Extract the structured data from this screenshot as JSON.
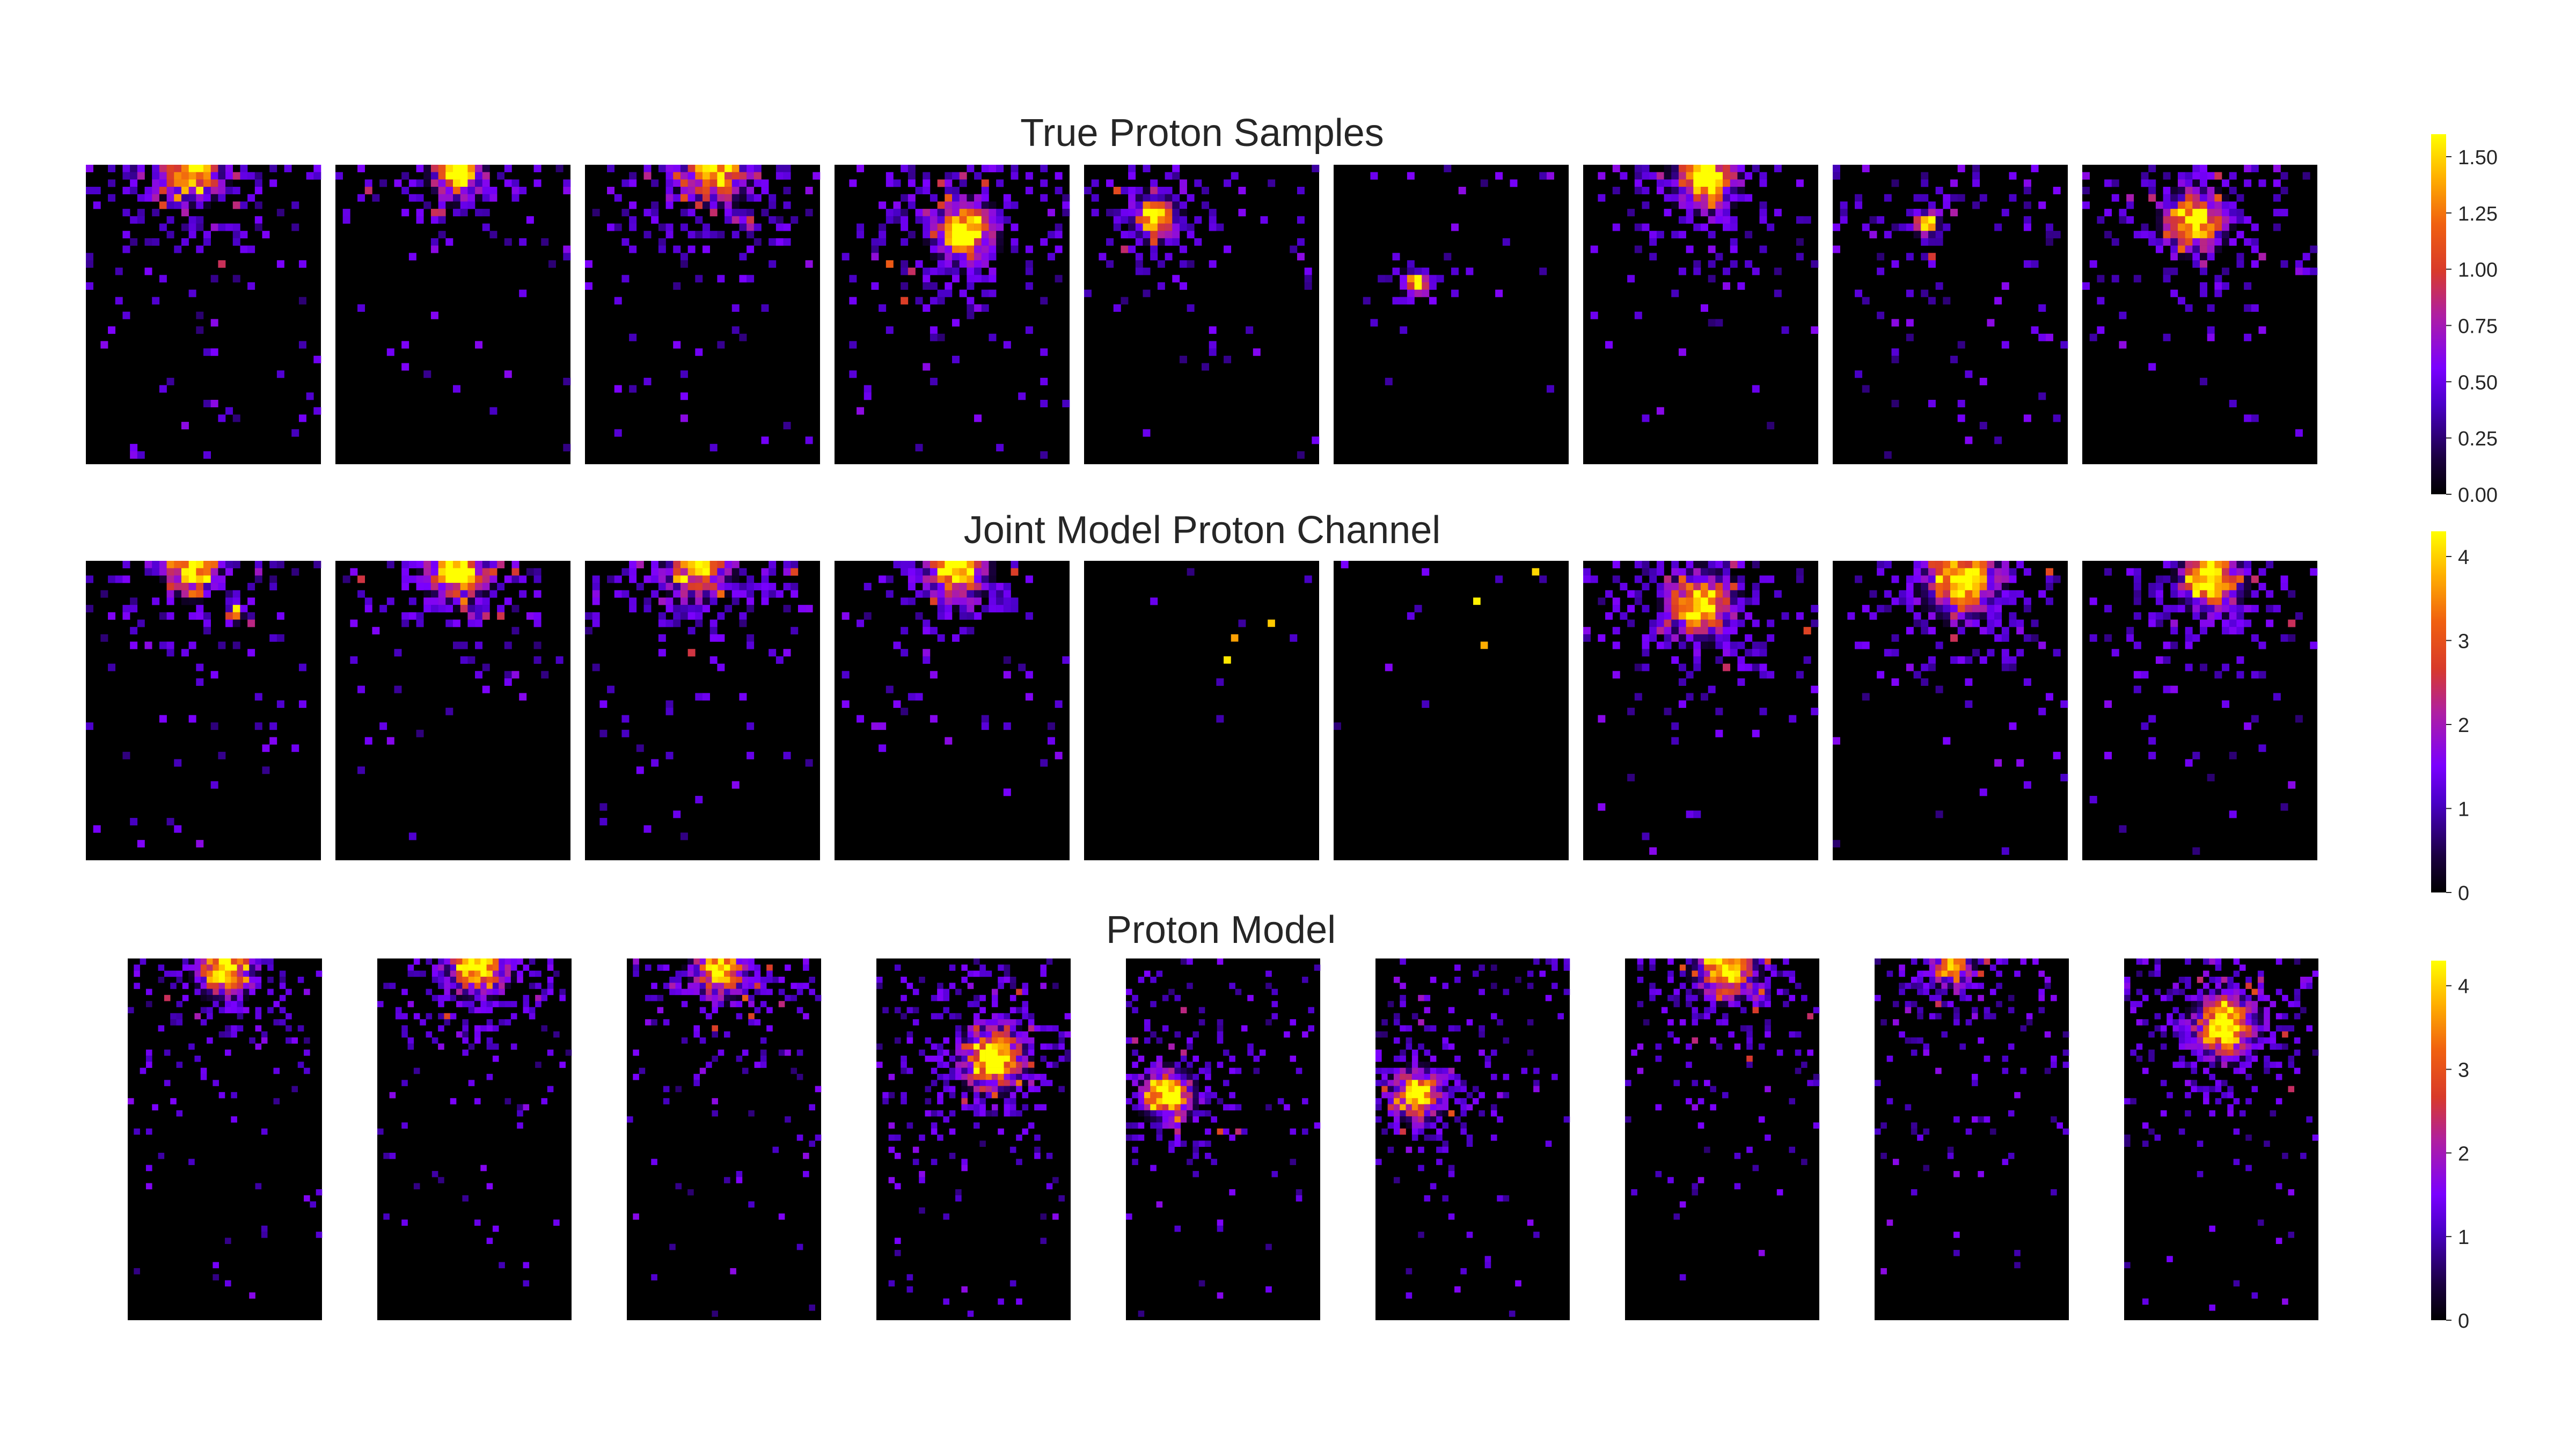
{
  "colors": {
    "background": "#ffffff",
    "panel": "#000000",
    "text": "#262626"
  },
  "chart_data": [
    {
      "type": "heatmap",
      "title": "True Proton Samples",
      "colormap": "gnuplot",
      "vlim": [
        0,
        1.6
      ],
      "colorbar_ticks": [
        "0.00",
        "0.25",
        "0.50",
        "0.75",
        "1.00",
        "1.25",
        "1.50"
      ],
      "panel_count": 9,
      "panels": [
        {
          "hotspots": [
            {
              "cx": 0.45,
              "cy": 0.02,
              "peak": 1.4,
              "spread": 0.12
            }
          ],
          "scatter": 0.3
        },
        {
          "hotspots": [
            {
              "cx": 0.52,
              "cy": 0.03,
              "peak": 1.5,
              "spread": 0.1
            }
          ],
          "scatter": 0.15
        },
        {
          "hotspots": [
            {
              "cx": 0.55,
              "cy": 0.02,
              "peak": 1.3,
              "spread": 0.13
            }
          ],
          "scatter": 0.28
        },
        {
          "hotspots": [
            {
              "cx": 0.55,
              "cy": 0.23,
              "peak": 1.55,
              "spread": 0.12
            }
          ],
          "scatter": 0.25
        },
        {
          "hotspots": [
            {
              "cx": 0.3,
              "cy": 0.18,
              "peak": 1.5,
              "spread": 0.09
            }
          ],
          "scatter": 0.2
        },
        {
          "hotspots": [
            {
              "cx": 0.35,
              "cy": 0.4,
              "peak": 1.5,
              "spread": 0.05
            }
          ],
          "scatter": 0.08
        },
        {
          "hotspots": [
            {
              "cx": 0.52,
              "cy": 0.05,
              "peak": 1.5,
              "spread": 0.12
            }
          ],
          "scatter": 0.18
        },
        {
          "hotspots": [
            {
              "cx": 0.4,
              "cy": 0.2,
              "peak": 1.2,
              "spread": 0.05
            }
          ],
          "scatter": 0.3
        },
        {
          "hotspots": [
            {
              "cx": 0.48,
              "cy": 0.19,
              "peak": 1.45,
              "spread": 0.12
            }
          ],
          "scatter": 0.2
        }
      ]
    },
    {
      "type": "heatmap",
      "title": "Joint Model Proton Channel",
      "colormap": "gnuplot",
      "vlim": [
        0,
        4.3
      ],
      "colorbar_ticks": [
        "0",
        "1",
        "2",
        "3",
        "4"
      ],
      "panel_count": 9,
      "panels": [
        {
          "hotspots": [
            {
              "cx": 0.45,
              "cy": 0.03,
              "peak": 3.8,
              "spread": 0.1
            },
            {
              "cx": 0.63,
              "cy": 0.18,
              "peak": 2.2,
              "spread": 0.04
            }
          ],
          "scatter": 0.22
        },
        {
          "hotspots": [
            {
              "cx": 0.52,
              "cy": 0.03,
              "peak": 4.0,
              "spread": 0.12
            }
          ],
          "scatter": 0.18
        },
        {
          "hotspots": [
            {
              "cx": 0.48,
              "cy": 0.02,
              "peak": 3.0,
              "spread": 0.13
            }
          ],
          "scatter": 0.2
        },
        {
          "hotspots": [
            {
              "cx": 0.52,
              "cy": 0.03,
              "peak": 3.9,
              "spread": 0.12
            }
          ],
          "scatter": 0.18
        },
        {
          "hotspots": [],
          "scatter": 0.05,
          "bright_points": 3
        },
        {
          "hotspots": [],
          "scatter": 0.04,
          "bright_points": 3
        },
        {
          "hotspots": [
            {
              "cx": 0.5,
              "cy": 0.15,
              "peak": 4.1,
              "spread": 0.13
            }
          ],
          "scatter": 0.2
        },
        {
          "hotspots": [
            {
              "cx": 0.55,
              "cy": 0.07,
              "peak": 4.2,
              "spread": 0.14
            }
          ],
          "scatter": 0.22
        },
        {
          "hotspots": [
            {
              "cx": 0.55,
              "cy": 0.07,
              "peak": 4.2,
              "spread": 0.12
            }
          ],
          "scatter": 0.18
        }
      ]
    },
    {
      "type": "heatmap",
      "title": "Proton Model",
      "colormap": "gnuplot",
      "vlim": [
        0,
        4.3
      ],
      "colorbar_ticks": [
        "0",
        "1",
        "2",
        "3",
        "4"
      ],
      "panel_count": 9,
      "panels": [
        {
          "hotspots": [
            {
              "cx": 0.5,
              "cy": 0.03,
              "peak": 4.0,
              "spread": 0.13
            }
          ],
          "scatter": 0.2
        },
        {
          "hotspots": [
            {
              "cx": 0.52,
              "cy": 0.02,
              "peak": 4.0,
              "spread": 0.14
            }
          ],
          "scatter": 0.22
        },
        {
          "hotspots": [
            {
              "cx": 0.48,
              "cy": 0.03,
              "peak": 3.8,
              "spread": 0.13
            }
          ],
          "scatter": 0.2
        },
        {
          "hotspots": [
            {
              "cx": 0.6,
              "cy": 0.28,
              "peak": 4.2,
              "spread": 0.15
            }
          ],
          "scatter": 0.25
        },
        {
          "hotspots": [
            {
              "cx": 0.22,
              "cy": 0.38,
              "peak": 4.1,
              "spread": 0.12
            }
          ],
          "scatter": 0.22
        },
        {
          "hotspots": [
            {
              "cx": 0.22,
              "cy": 0.38,
              "peak": 4.1,
              "spread": 0.12
            }
          ],
          "scatter": 0.22
        },
        {
          "hotspots": [
            {
              "cx": 0.52,
              "cy": 0.03,
              "peak": 4.0,
              "spread": 0.14
            }
          ],
          "scatter": 0.2
        },
        {
          "hotspots": [
            {
              "cx": 0.4,
              "cy": 0.02,
              "peak": 2.8,
              "spread": 0.1
            }
          ],
          "scatter": 0.25
        },
        {
          "hotspots": [
            {
              "cx": 0.52,
              "cy": 0.19,
              "peak": 4.2,
              "spread": 0.15
            }
          ],
          "scatter": 0.22
        }
      ]
    }
  ]
}
